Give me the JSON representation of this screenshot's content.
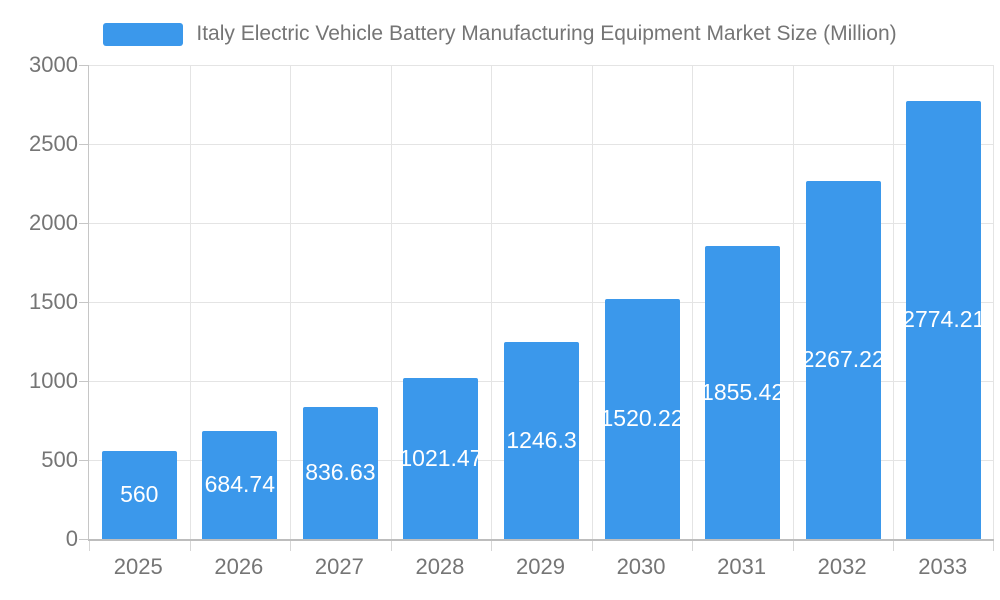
{
  "colors": {
    "bar_fill": "#3b98eb",
    "grid_line": "#e4e4e4",
    "axis_line": "#bdbdbd",
    "axis_text": "#757575",
    "bar_label_text": "#ffffff",
    "background": "#ffffff"
  },
  "legend": {
    "swatch": "bar-series-swatch",
    "label": "Italy Electric Vehicle Battery Manufacturing Equipment Market Size (Million)"
  },
  "chart_data": {
    "type": "bar",
    "title": "Italy Electric Vehicle Battery Manufacturing Equipment Market Size (Million)",
    "categories": [
      "2025",
      "2026",
      "2027",
      "2028",
      "2029",
      "2030",
      "2031",
      "2032",
      "2033"
    ],
    "values": [
      560,
      684.74,
      836.63,
      1021.47,
      1246.3,
      1520.22,
      1855.42,
      2267.22,
      2774.21
    ],
    "value_labels": [
      "560",
      "684.74",
      "836.63",
      "1021.47",
      "1246.3",
      "1520.22",
      "1855.42",
      "2267.22",
      "2774.21"
    ],
    "xlabel": "",
    "ylabel": "",
    "ylim": [
      0,
      3000
    ],
    "yticks": [
      0,
      500,
      1000,
      1500,
      2000,
      2500,
      3000
    ],
    "grid": "on",
    "legend_position": "top",
    "bar_label_position": "inside-center"
  }
}
